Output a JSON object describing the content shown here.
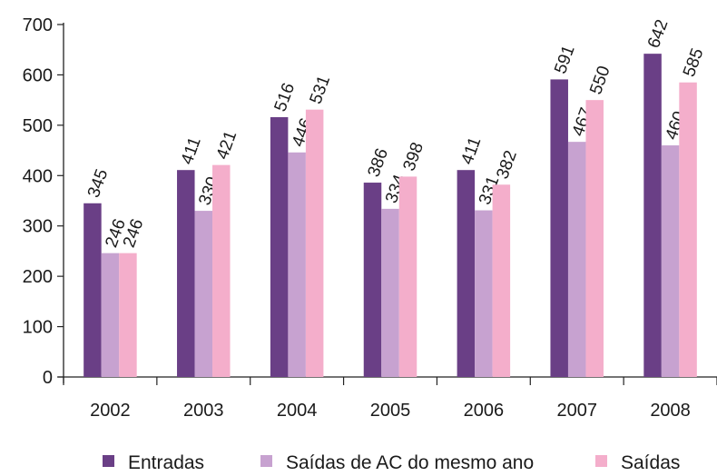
{
  "chart_data": {
    "type": "bar",
    "title": "",
    "xlabel": "",
    "ylabel": "",
    "categories": [
      "2002",
      "2003",
      "2004",
      "2005",
      "2006",
      "2007",
      "2008"
    ],
    "series": [
      {
        "name": "Entradas",
        "color": "#6a3f86",
        "values": [
          345,
          411,
          516,
          386,
          411,
          591,
          642
        ]
      },
      {
        "name": "Saídas de AC do mesmo ano",
        "color": "#c7a2d0",
        "values": [
          246,
          330,
          446,
          334,
          331,
          467,
          460
        ]
      },
      {
        "name": "Saídas",
        "color": "#f4aecb",
        "values": [
          246,
          421,
          531,
          398,
          382,
          550,
          585
        ]
      }
    ],
    "ylim": [
      0,
      700
    ],
    "yticks": [
      0,
      100,
      200,
      300,
      400,
      500,
      600,
      700
    ],
    "grid": false,
    "legend_position": "bottom"
  }
}
